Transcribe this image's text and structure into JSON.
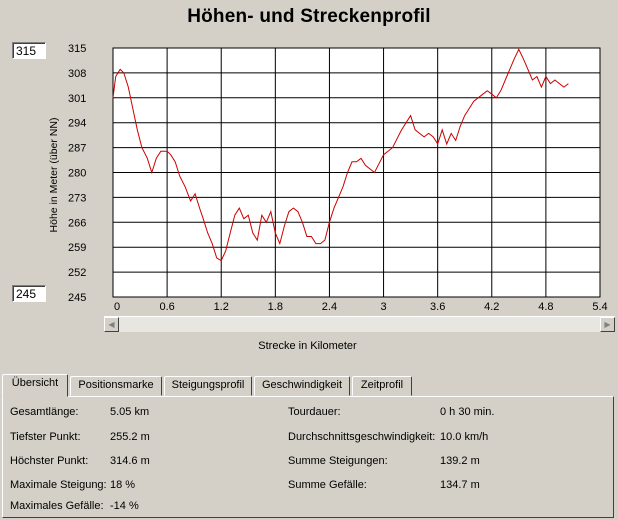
{
  "title": "Höhen- und Streckenprofil",
  "range_boxes": {
    "max": "315",
    "min": "245"
  },
  "chart_data": {
    "type": "line",
    "xlabel": "Strecke in Kilometer",
    "ylabel": "Höhe in Meter (über NN)",
    "xlim": [
      0,
      5.4
    ],
    "ylim": [
      245,
      315
    ],
    "x_ticks": [
      "0",
      "0.6",
      "1.2",
      "1.8",
      "2.4",
      "3",
      "3.6",
      "4.2",
      "4.8",
      "5.4"
    ],
    "y_ticks": [
      "315",
      "308",
      "301",
      "294",
      "287",
      "280",
      "273",
      "266",
      "259",
      "252",
      "245"
    ],
    "grid": true,
    "line_color": "#cc0000",
    "x": [
      0,
      0.03,
      0.08,
      0.12,
      0.17,
      0.22,
      0.27,
      0.32,
      0.38,
      0.43,
      0.48,
      0.53,
      0.58,
      0.6,
      0.64,
      0.69,
      0.74,
      0.8,
      0.86,
      0.91,
      0.96,
      1.0,
      1.05,
      1.1,
      1.15,
      1.2,
      1.25,
      1.3,
      1.35,
      1.4,
      1.45,
      1.5,
      1.55,
      1.6,
      1.65,
      1.7,
      1.75,
      1.8,
      1.85,
      1.9,
      1.95,
      2.0,
      2.05,
      2.1,
      2.15,
      2.2,
      2.25,
      2.3,
      2.35,
      2.4,
      2.45,
      2.5,
      2.55,
      2.6,
      2.65,
      2.7,
      2.75,
      2.8,
      2.9,
      3.0,
      3.1,
      3.2,
      3.3,
      3.35,
      3.4,
      3.45,
      3.5,
      3.55,
      3.6,
      3.65,
      3.7,
      3.75,
      3.8,
      3.85,
      3.9,
      3.95,
      4.0,
      4.05,
      4.1,
      4.15,
      4.2,
      4.25,
      4.3,
      4.35,
      4.4,
      4.45,
      4.5,
      4.55,
      4.6,
      4.65,
      4.7,
      4.75,
      4.8,
      4.85,
      4.9,
      4.95,
      5.0,
      5.05
    ],
    "y": [
      301,
      307,
      309,
      308,
      304,
      298,
      292,
      287,
      284,
      280,
      284,
      286,
      286,
      286,
      285,
      283,
      279,
      276,
      272,
      274,
      270,
      267,
      263,
      260,
      256,
      255.2,
      258,
      263,
      268,
      270,
      267,
      268,
      263,
      261,
      268,
      266,
      269,
      263,
      260,
      265,
      269,
      270,
      269,
      266,
      262,
      262,
      260,
      260,
      261,
      266,
      270,
      273,
      276,
      280,
      283,
      283,
      284,
      282,
      280,
      285,
      287,
      292,
      296,
      292,
      291,
      290,
      291,
      290,
      288,
      292,
      288,
      291,
      289,
      293,
      296,
      298,
      300,
      301,
      302,
      303,
      302,
      301,
      303,
      306,
      309,
      312,
      314.6,
      312,
      309,
      306,
      307,
      304,
      307,
      305,
      306,
      305,
      304,
      305
    ]
  },
  "tabs": [
    {
      "label": "Übersicht",
      "active": true
    },
    {
      "label": "Positionsmarke",
      "active": false
    },
    {
      "label": "Steigungsprofil",
      "active": false
    },
    {
      "label": "Geschwindigkeit",
      "active": false
    },
    {
      "label": "Zeitprofil",
      "active": false
    }
  ],
  "stats": {
    "gesamtlaenge": {
      "label": "Gesamtlänge:",
      "value": "5.05 km"
    },
    "tiefster": {
      "label": "Tiefster Punkt:",
      "value": "255.2 m"
    },
    "hoechster": {
      "label": "Höchster Punkt:",
      "value": "314.6 m"
    },
    "max_steigung": {
      "label": "Maximale Steigung:",
      "value": "18 %"
    },
    "max_gefaelle": {
      "label": "Maximales Gefälle:",
      "value": "-14 %"
    },
    "tourdauer": {
      "label": "Tourdauer:",
      "value": "0 h 30 min."
    },
    "durchschnitt": {
      "label": "Durchschnittsgeschwindigkeit:",
      "value": "10.0 km/h"
    },
    "summe_steigungen": {
      "label": "Summe Steigungen:",
      "value": "139.2 m"
    },
    "summe_gefaelle": {
      "label": "Summe Gefälle:",
      "value": "134.7 m"
    }
  }
}
